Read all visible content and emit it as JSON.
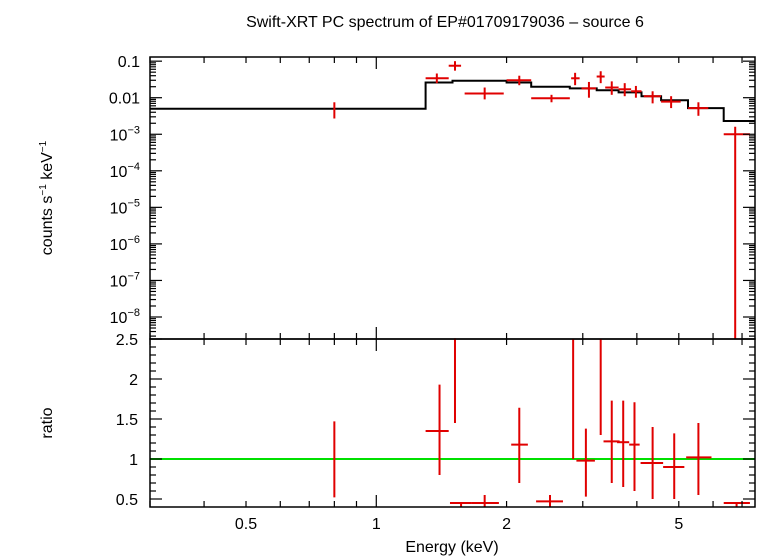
{
  "chart_data": {
    "title": "Swift-XRT PC spectrum of EP#01709179036 – source 6",
    "xlabel": "Energy (keV)",
    "x_scale": "log",
    "xlim": [
      0.3,
      7.5
    ],
    "x_ticks": [
      {
        "value": 0.5,
        "label": "0.5"
      },
      {
        "value": 1,
        "label": "1"
      },
      {
        "value": 2,
        "label": "2"
      },
      {
        "value": 5,
        "label": "5"
      }
    ],
    "colors": {
      "data": "#e00000",
      "model": "#000000",
      "unity": "#00e000",
      "frame": "#000000"
    },
    "panels": [
      {
        "name": "spectrum",
        "type": "scatter",
        "ylabel_main": "counts s",
        "ylabel_sup1": "−1",
        "ylabel_mid": " keV",
        "ylabel_sup2": "−1",
        "y_scale": "log",
        "ylim": [
          2.5e-09,
          0.13
        ],
        "y_ticks": [
          {
            "value": 0.1,
            "base": "0.1",
            "exp": ""
          },
          {
            "value": 0.01,
            "base": "0.01",
            "exp": ""
          },
          {
            "value": 0.001,
            "base": "10",
            "exp": "−3"
          },
          {
            "value": 0.0001,
            "base": "10",
            "exp": "−4"
          },
          {
            "value": 1e-05,
            "base": "10",
            "exp": "−5"
          },
          {
            "value": 1e-06,
            "base": "10",
            "exp": "−6"
          },
          {
            "value": 1e-07,
            "base": "10",
            "exp": "−7"
          },
          {
            "value": 1e-08,
            "base": "10",
            "exp": "−8"
          }
        ],
        "data": [
          {
            "x": 0.8,
            "xlo": 0.8,
            "xhi": 0.8,
            "y": 0.0045,
            "ylo": 0.0027,
            "yhi": 0.0075
          },
          {
            "x": 1.38,
            "xlo": 1.3,
            "xhi": 1.47,
            "y": 0.034,
            "ylo": 0.025,
            "yhi": 0.046
          },
          {
            "x": 1.52,
            "xlo": 1.47,
            "xhi": 1.57,
            "y": 0.075,
            "ylo": 0.055,
            "yhi": 0.1
          },
          {
            "x": 1.78,
            "xlo": 1.6,
            "xhi": 1.97,
            "y": 0.013,
            "ylo": 0.009,
            "yhi": 0.019
          },
          {
            "x": 2.14,
            "xlo": 2.0,
            "xhi": 2.28,
            "y": 0.03,
            "ylo": 0.022,
            "yhi": 0.04
          },
          {
            "x": 2.54,
            "xlo": 2.28,
            "xhi": 2.8,
            "y": 0.0097,
            "ylo": 0.0075,
            "yhi": 0.012
          },
          {
            "x": 2.88,
            "xlo": 2.82,
            "xhi": 2.95,
            "y": 0.034,
            "ylo": 0.022,
            "yhi": 0.048
          },
          {
            "x": 3.1,
            "xlo": 2.98,
            "xhi": 3.22,
            "y": 0.018,
            "ylo": 0.01,
            "yhi": 0.027
          },
          {
            "x": 3.3,
            "xlo": 3.23,
            "xhi": 3.37,
            "y": 0.038,
            "ylo": 0.025,
            "yhi": 0.053
          },
          {
            "x": 3.5,
            "xlo": 3.38,
            "xhi": 3.63,
            "y": 0.019,
            "ylo": 0.012,
            "yhi": 0.028
          },
          {
            "x": 3.75,
            "xlo": 3.63,
            "xhi": 3.88,
            "y": 0.017,
            "ylo": 0.011,
            "yhi": 0.025
          },
          {
            "x": 3.98,
            "xlo": 3.88,
            "xhi": 4.1,
            "y": 0.015,
            "ylo": 0.01,
            "yhi": 0.021
          },
          {
            "x": 4.35,
            "xlo": 4.15,
            "xhi": 4.55,
            "y": 0.011,
            "ylo": 0.007,
            "yhi": 0.015
          },
          {
            "x": 4.8,
            "xlo": 4.55,
            "xhi": 5.05,
            "y": 0.0078,
            "ylo": 0.0052,
            "yhi": 0.011
          },
          {
            "x": 5.55,
            "xlo": 5.25,
            "xhi": 5.85,
            "y": 0.0052,
            "ylo": 0.0032,
            "yhi": 0.0075
          },
          {
            "x": 6.75,
            "xlo": 6.35,
            "xhi": 7.3,
            "y": 0.001,
            "ylo": 2.5e-09,
            "yhi": 0.0016
          }
        ],
        "model": [
          {
            "x": 0.3,
            "y": 0.005
          },
          {
            "x": 1.3,
            "y": 0.005
          },
          {
            "x": 1.3,
            "y": 0.026
          },
          {
            "x": 1.5,
            "y": 0.026
          },
          {
            "x": 1.5,
            "y": 0.029
          },
          {
            "x": 2.0,
            "y": 0.029
          },
          {
            "x": 2.0,
            "y": 0.026
          },
          {
            "x": 2.28,
            "y": 0.026
          },
          {
            "x": 2.28,
            "y": 0.02
          },
          {
            "x": 2.8,
            "y": 0.02
          },
          {
            "x": 2.8,
            "y": 0.018
          },
          {
            "x": 3.23,
            "y": 0.018
          },
          {
            "x": 3.23,
            "y": 0.016
          },
          {
            "x": 3.63,
            "y": 0.016
          },
          {
            "x": 3.63,
            "y": 0.014
          },
          {
            "x": 4.1,
            "y": 0.014
          },
          {
            "x": 4.1,
            "y": 0.011
          },
          {
            "x": 4.55,
            "y": 0.011
          },
          {
            "x": 4.55,
            "y": 0.0085
          },
          {
            "x": 5.25,
            "y": 0.0085
          },
          {
            "x": 5.25,
            "y": 0.0052
          },
          {
            "x": 6.35,
            "y": 0.0052
          },
          {
            "x": 6.35,
            "y": 0.0023
          },
          {
            "x": 7.5,
            "y": 0.0023
          }
        ]
      },
      {
        "name": "ratio",
        "type": "scatter",
        "ylabel": "ratio",
        "y_scale": "linear",
        "ylim": [
          0.4,
          2.5
        ],
        "y_ticks": [
          {
            "value": 0.5,
            "label": "0.5"
          },
          {
            "value": 1,
            "label": "1"
          },
          {
            "value": 1.5,
            "label": "1.5"
          },
          {
            "value": 2,
            "label": "2"
          },
          {
            "value": 2.5,
            "label": "2.5"
          }
        ],
        "reference_line": 1,
        "data": [
          {
            "x": 0.8,
            "xlo": 0.8,
            "xhi": 0.8,
            "y": 1.0,
            "ylo": 0.52,
            "yhi": 1.47
          },
          {
            "x": 1.4,
            "xlo": 1.3,
            "xhi": 1.47,
            "y": 1.35,
            "ylo": 0.8,
            "yhi": 1.93
          },
          {
            "x": 1.52,
            "xlo": 1.52,
            "xhi": 1.52,
            "y": 2.5,
            "ylo": 1.45,
            "yhi": 2.5
          },
          {
            "x": 1.57,
            "xlo": 1.48,
            "xhi": 1.66,
            "y": 0.45,
            "ylo": 0.4,
            "yhi": 0.45
          },
          {
            "x": 1.78,
            "xlo": 1.66,
            "xhi": 1.92,
            "y": 0.45,
            "ylo": 0.4,
            "yhi": 0.55
          },
          {
            "x": 2.14,
            "xlo": 2.05,
            "xhi": 2.24,
            "y": 1.18,
            "ylo": 0.7,
            "yhi": 1.64
          },
          {
            "x": 2.52,
            "xlo": 2.34,
            "xhi": 2.7,
            "y": 0.47,
            "ylo": 0.4,
            "yhi": 0.55
          },
          {
            "x": 2.85,
            "xlo": 2.85,
            "xhi": 2.85,
            "y": 1.79,
            "ylo": 1.0,
            "yhi": 2.5
          },
          {
            "x": 3.05,
            "xlo": 2.9,
            "xhi": 3.2,
            "y": 0.98,
            "ylo": 0.53,
            "yhi": 1.38
          },
          {
            "x": 3.3,
            "xlo": 3.3,
            "xhi": 3.3,
            "y": 2.1,
            "ylo": 1.3,
            "yhi": 2.5
          },
          {
            "x": 3.5,
            "xlo": 3.35,
            "xhi": 3.65,
            "y": 1.22,
            "ylo": 0.7,
            "yhi": 1.73
          },
          {
            "x": 3.72,
            "xlo": 3.6,
            "xhi": 3.84,
            "y": 1.21,
            "ylo": 0.65,
            "yhi": 1.73
          },
          {
            "x": 3.95,
            "xlo": 3.84,
            "xhi": 4.06,
            "y": 1.18,
            "ylo": 0.6,
            "yhi": 1.71
          },
          {
            "x": 4.35,
            "xlo": 4.08,
            "xhi": 4.6,
            "y": 0.95,
            "ylo": 0.5,
            "yhi": 1.4
          },
          {
            "x": 4.88,
            "xlo": 4.6,
            "xhi": 5.15,
            "y": 0.9,
            "ylo": 0.5,
            "yhi": 1.32
          },
          {
            "x": 5.55,
            "xlo": 5.2,
            "xhi": 5.95,
            "y": 1.02,
            "ylo": 0.55,
            "yhi": 1.45
          },
          {
            "x": 6.8,
            "xlo": 6.35,
            "xhi": 7.3,
            "y": 0.45,
            "ylo": 0.4,
            "yhi": 0.45
          }
        ]
      }
    ]
  }
}
